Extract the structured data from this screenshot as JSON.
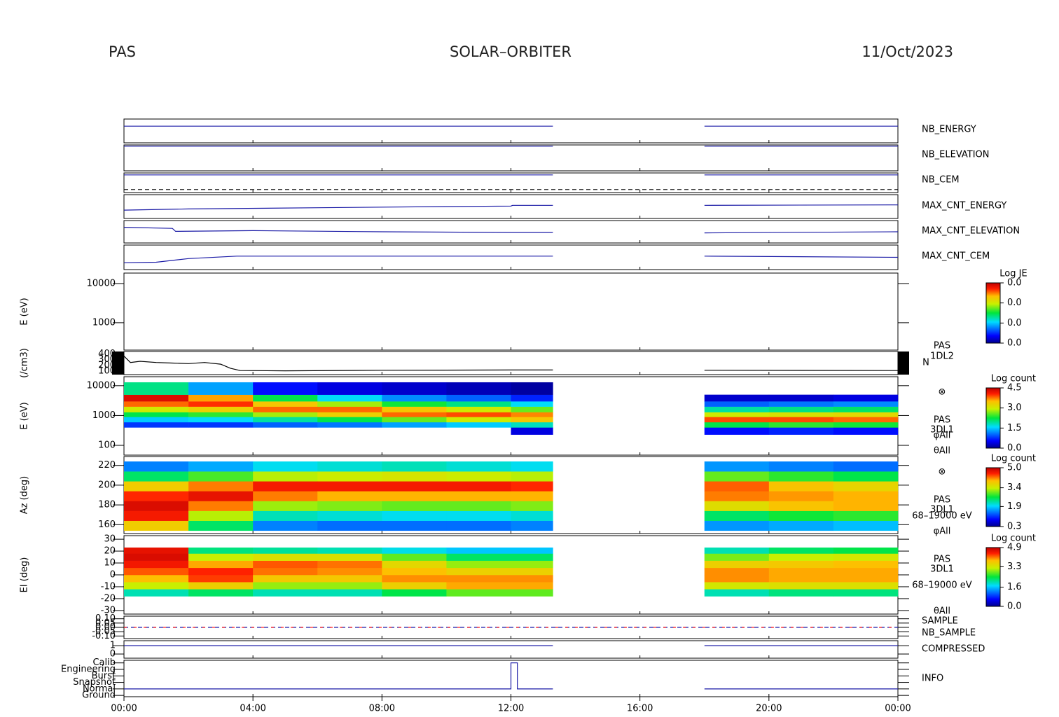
{
  "header": {
    "left": "PAS",
    "center": "SOLAR–ORBITER",
    "right": "11/Oct/2023"
  },
  "chart_data": [
    {
      "type": "line",
      "ylim": [
        0,
        1
      ],
      "x": [
        0,
        13.3,
        13.3,
        18,
        24
      ],
      "series": [
        {
          "name": "NB_ENERGY",
          "color": "#1a1aa6",
          "values": [
            0.7,
            0.7,
            null,
            0.7,
            0.7
          ]
        }
      ]
    },
    {
      "type": "line",
      "ylim": [
        0,
        1
      ],
      "x": [
        0,
        13.3,
        13.3,
        18,
        24
      ],
      "series": [
        {
          "name": "NB_ELEVATION",
          "color": "#1a1aa6",
          "values": [
            0.95,
            0.95,
            null,
            0.95,
            0.95
          ]
        }
      ]
    },
    {
      "type": "line",
      "ylim": [
        0,
        1
      ],
      "x": [
        0,
        13.3,
        13.3,
        18,
        24
      ],
      "hline": 0.15,
      "series": [
        {
          "name": "NB_CEM",
          "color": "#1a1aa6",
          "values": [
            0.9,
            0.9,
            null,
            0.9,
            0.9
          ]
        }
      ]
    },
    {
      "type": "line",
      "ylim": [
        0,
        1
      ],
      "x": [
        0,
        2,
        6,
        10,
        12,
        12.05,
        13.3,
        13.3,
        18,
        24
      ],
      "series": [
        {
          "name": "MAX_CNT_ENERGY",
          "color": "#1a1aa6",
          "values": [
            0.35,
            0.4,
            0.45,
            0.5,
            0.52,
            0.55,
            0.55,
            null,
            0.55,
            0.57
          ]
        }
      ]
    },
    {
      "type": "line",
      "ylim": [
        0,
        1
      ],
      "x": [
        0,
        1.5,
        1.6,
        4,
        8,
        12,
        13.3,
        13.3,
        18,
        24
      ],
      "series": [
        {
          "name": "MAX_CNT_ELEVATION",
          "color": "#1a1aa6",
          "values": [
            0.7,
            0.65,
            0.52,
            0.55,
            0.5,
            0.47,
            0.47,
            null,
            0.45,
            0.5
          ]
        }
      ]
    },
    {
      "type": "line",
      "ylim": [
        0,
        1
      ],
      "x": [
        0,
        1,
        2,
        3.5,
        8,
        13.3,
        13.3,
        18,
        24
      ],
      "series": [
        {
          "name": "MAX_CNT_CEM",
          "color": "#1a1aa6",
          "values": [
            0.28,
            0.3,
            0.45,
            0.55,
            0.55,
            0.55,
            null,
            0.55,
            0.5
          ]
        }
      ]
    },
    {
      "type": "heatmap",
      "ylabel": "E (eV)",
      "yscale": "log",
      "ylim": [
        200,
        18500
      ],
      "yticks": [
        1000,
        10000
      ],
      "ztitle": "Log JE",
      "zlim": [
        0,
        0.03
      ],
      "zticks": [
        {
          "value": 0,
          "label": "0.0"
        },
        {
          "value": 0.01,
          "label": "0.0"
        },
        {
          "value": 0.02,
          "label": "0.0"
        },
        {
          "value": 0.03,
          "label": "0.0"
        }
      ]
    },
    {
      "type": "line",
      "ylabel": "(/cm3)",
      "ylim": [
        40,
        440
      ],
      "yticks": [
        100,
        200,
        300,
        400
      ],
      "annotations": [
        "PAS",
        "1DL2",
        "N"
      ],
      "x": [
        0,
        0.2,
        0.5,
        1,
        1.5,
        2,
        2.5,
        3,
        3.3,
        3.6,
        5,
        8,
        12,
        13.3,
        13.3,
        18,
        24
      ],
      "series": [
        {
          "color": "#000000",
          "values": [
            360,
            250,
            270,
            250,
            240,
            230,
            250,
            220,
            150,
            110,
            105,
            115,
            120,
            120,
            null,
            115,
            110
          ]
        }
      ]
    },
    {
      "type": "heatmap",
      "ylabel": "E (eV)",
      "yscale": "log",
      "ylim": [
        47,
        20000
      ],
      "yticks": [
        100,
        1000,
        10000
      ],
      "annotations": [
        "⊗",
        "PAS",
        "3DL1",
        "φAll",
        "θAll"
      ],
      "ztitle": "Log count",
      "zlim": [
        0,
        4.5
      ],
      "zticks": [
        {
          "value": 0,
          "label": "0.0"
        },
        {
          "value": 1.5,
          "label": "1.5"
        },
        {
          "value": 3,
          "label": "3.0"
        },
        4.5
      ],
      "bins": [
        0,
        2,
        4,
        6,
        8,
        10,
        12,
        13.3,
        18,
        20,
        22,
        24
      ],
      "yedges": [
        230,
        400,
        600,
        900,
        1300,
        2000,
        3000,
        5000,
        13000
      ],
      "z": [
        [
          null,
          0.8,
          1.5,
          2.2,
          3.0,
          3.8,
          4.3,
          2.0
        ],
        [
          null,
          0.8,
          1.6,
          2.4,
          3.3,
          4.0,
          3.6,
          1.3
        ],
        [
          null,
          1.0,
          1.9,
          2.8,
          3.8,
          3.4,
          2.2,
          0.6
        ],
        [
          null,
          1.1,
          2.2,
          3.3,
          3.8,
          2.8,
          1.6,
          0.4
        ],
        [
          null,
          1.3,
          2.6,
          3.8,
          3.4,
          2.3,
          1.2,
          0.3
        ],
        [
          null,
          1.5,
          3.0,
          3.9,
          3.0,
          2.0,
          1.0,
          0.2
        ],
        [
          0.4,
          1.8,
          3.4,
          3.7,
          2.6,
          1.6,
          0.7,
          0.1
        ],
        [
          null,
          null,
          null,
          null,
          null,
          null,
          null,
          null
        ],
        [
          0.6,
          2.2,
          3.9,
          3.0,
          1.9,
          1.0,
          0.3,
          null
        ],
        [
          0.7,
          2.4,
          3.9,
          3.1,
          2.0,
          1.1,
          0.3,
          null
        ],
        [
          0.6,
          2.3,
          3.8,
          3.2,
          2.1,
          1.2,
          0.4,
          null
        ]
      ]
    },
    {
      "type": "heatmap",
      "ylabel": "Az (deg)",
      "ylim": [
        151,
        229
      ],
      "yticks": [
        160,
        180,
        200,
        220
      ],
      "annotations": [
        "⊗",
        "PAS",
        "3DL1",
        "68–19000 eV",
        "φAll"
      ],
      "ztitle": "Log count",
      "zlim": [
        0.3,
        5.0
      ],
      "zticks": [
        0.3,
        1.9,
        3.4,
        {
          "value": 5.0,
          "label": "5.0"
        }
      ],
      "bins": [
        0,
        2,
        4,
        6,
        8,
        10,
        12,
        13.3,
        18,
        20,
        22,
        24
      ],
      "yedges": [
        154,
        164,
        174,
        184,
        194,
        204,
        214,
        224
      ],
      "z": [
        [
          3.8,
          4.6,
          4.8,
          4.5,
          3.8,
          2.5,
          1.5
        ],
        [
          2.5,
          3.3,
          4.2,
          4.7,
          4.2,
          2.9,
          1.7
        ],
        [
          1.5,
          2.2,
          3.2,
          4.2,
          4.6,
          3.3,
          2.0
        ],
        [
          1.4,
          2.1,
          3.1,
          4.0,
          4.6,
          3.4,
          2.1
        ],
        [
          1.4,
          2.0,
          3.0,
          4.0,
          4.6,
          3.5,
          2.2
        ],
        [
          1.4,
          2.0,
          3.0,
          4.0,
          4.6,
          3.4,
          2.1
        ],
        [
          1.5,
          2.1,
          3.1,
          4.0,
          4.5,
          3.3,
          2.0
        ],
        [
          null,
          null,
          null,
          null,
          null,
          null,
          null
        ],
        [
          1.6,
          2.5,
          3.6,
          4.2,
          4.3,
          3.0,
          1.6
        ],
        [
          1.7,
          2.7,
          3.9,
          4.1,
          3.9,
          2.8,
          1.5
        ],
        [
          1.8,
          2.8,
          4.0,
          4.0,
          3.7,
          2.6,
          1.4
        ]
      ]
    },
    {
      "type": "heatmap",
      "ylabel": "El (deg)",
      "ylim": [
        -33,
        33
      ],
      "yticks": [
        -30,
        -20,
        -10,
        0,
        10,
        20,
        30
      ],
      "annotations": [
        "PAS",
        "3DL1",
        "68–19000 eV",
        "θAll"
      ],
      "ztitle": "Log count",
      "zlim": [
        0,
        4.9
      ],
      "zticks": [
        {
          "value": 0,
          "label": "0.0"
        },
        1.6,
        3.3,
        4.9
      ],
      "bins": [
        0,
        2,
        4,
        6,
        8,
        10,
        12,
        13.3,
        18,
        20,
        22,
        24
      ],
      "yedges": [
        -18,
        -12,
        -6,
        0,
        6,
        12,
        18,
        23
      ],
      "z": [
        [
          2.0,
          3.2,
          3.8,
          4.2,
          4.5,
          4.7,
          4.6
        ],
        [
          2.3,
          3.6,
          4.3,
          4.4,
          3.9,
          3.2,
          2.2
        ],
        [
          2.0,
          3.0,
          3.7,
          4.1,
          4.2,
          3.4,
          2.1
        ],
        [
          2.0,
          3.0,
          3.7,
          4.0,
          4.1,
          3.4,
          2.0
        ],
        [
          2.4,
          3.6,
          4.0,
          3.8,
          3.5,
          2.8,
          1.8
        ],
        [
          2.8,
          3.9,
          4.0,
          3.6,
          3.0,
          2.3,
          1.6
        ],
        [
          2.8,
          3.9,
          4.0,
          3.6,
          3.0,
          2.3,
          1.6
        ],
        [
          null,
          null,
          null,
          null,
          null,
          null,
          null
        ],
        [
          2.0,
          3.3,
          4.0,
          4.0,
          3.6,
          2.9,
          2.0
        ],
        [
          2.2,
          3.4,
          3.9,
          3.9,
          3.7,
          3.2,
          2.3
        ],
        [
          2.2,
          3.4,
          3.9,
          3.9,
          3.8,
          3.3,
          2.4
        ]
      ]
    },
    {
      "type": "line",
      "dashed": true,
      "ylim": [
        -0.13,
        0.13
      ],
      "yticks": [
        {
          "value": -0.1,
          "label": "-0.10"
        },
        {
          "value": -0.05,
          "label": "-0.05"
        },
        {
          "value": 0,
          "label": "0.00"
        },
        {
          "value": 0.05,
          "label": "0.05"
        },
        {
          "value": 0.1,
          "label": "0.10"
        }
      ],
      "x": [
        0,
        24
      ],
      "series": [
        {
          "name": "SAMPLE",
          "color": "#1a1aa6",
          "values": [
            0,
            0
          ]
        },
        {
          "name": "NB_SAMPLE",
          "color": "#ff2020",
          "values": [
            0,
            0
          ]
        }
      ]
    },
    {
      "type": "line",
      "ylim": [
        -0.5,
        1.6
      ],
      "yticks": [
        0,
        1
      ],
      "x": [
        0,
        13.3,
        13.3,
        18,
        24
      ],
      "series": [
        {
          "name": "COMPRESSED",
          "color": "#1a1aa6",
          "values": [
            1,
            1,
            null,
            1,
            1
          ]
        }
      ]
    },
    {
      "type": "line",
      "ylim": [
        -0.2,
        5.4
      ],
      "yticks": [
        {
          "value": 0,
          "label": "Ground"
        },
        {
          "value": 1,
          "label": "Normal"
        },
        {
          "value": 2,
          "label": "Snapshot"
        },
        {
          "value": 3,
          "label": "Burst"
        },
        {
          "value": 4,
          "label": "Engineering"
        },
        {
          "value": 5,
          "label": "Calib"
        }
      ],
      "xlim": [
        0,
        24
      ],
      "xticks": [
        {
          "value": 0,
          "label": "00:00"
        },
        {
          "value": 4,
          "label": "04:00"
        },
        {
          "value": 8,
          "label": "08:00"
        },
        {
          "value": 12,
          "label": "12:00"
        },
        {
          "value": 16,
          "label": "16:00"
        },
        {
          "value": 20,
          "label": "20:00"
        },
        {
          "value": 24,
          "label": "00:00"
        }
      ],
      "x": [
        0,
        12.0,
        12.0,
        12.2,
        12.2,
        13.3,
        13.3,
        18,
        24
      ],
      "series": [
        {
          "name": "INFO",
          "color": "#1a1aa6",
          "values": [
            1,
            1,
            5,
            5,
            1,
            1,
            null,
            1,
            1
          ]
        }
      ]
    }
  ]
}
